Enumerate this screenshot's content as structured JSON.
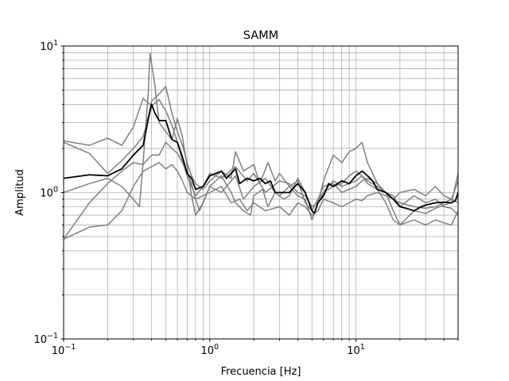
{
  "chart_data": {
    "type": "line",
    "title": "SAMM",
    "xlabel": "Frecuencia [Hz]",
    "ylabel": "Amplitud",
    "xscale": "log",
    "yscale": "log",
    "xlim": [
      0.1,
      50
    ],
    "ylim": [
      0.1,
      10
    ],
    "grid": true,
    "x_ticks": [
      {
        "value": 0.1,
        "base": "10",
        "exp": "−1"
      },
      {
        "value": 1,
        "base": "10",
        "exp": "0"
      },
      {
        "value": 10,
        "base": "10",
        "exp": "1"
      }
    ],
    "y_ticks": [
      {
        "value": 0.1,
        "base": "10",
        "exp": "−1"
      },
      {
        "value": 1,
        "base": "10",
        "exp": "0"
      },
      {
        "value": 10,
        "base": "10",
        "exp": "1"
      }
    ],
    "series": [
      {
        "color": "#808080",
        "width": 1.5,
        "points": [
          [
            0.1,
            2.25
          ],
          [
            0.15,
            2.1
          ],
          [
            0.2,
            2.35
          ],
          [
            0.25,
            2.1
          ],
          [
            0.3,
            2.8
          ],
          [
            0.35,
            4.4
          ],
          [
            0.4,
            3.9
          ],
          [
            0.45,
            4.3
          ],
          [
            0.5,
            3.6
          ],
          [
            0.55,
            2.9
          ],
          [
            0.6,
            2.2
          ],
          [
            0.65,
            1.65
          ],
          [
            0.7,
            1.3
          ],
          [
            0.75,
            1.1
          ],
          [
            0.8,
            0.95
          ],
          [
            0.9,
            1.1
          ],
          [
            1.0,
            1.35
          ],
          [
            1.2,
            1.25
          ],
          [
            1.5,
            1.5
          ],
          [
            1.8,
            1.2
          ],
          [
            2.0,
            1.35
          ],
          [
            2.4,
            1.0
          ],
          [
            3.0,
            1.2
          ],
          [
            3.5,
            1.15
          ],
          [
            4.0,
            1.0
          ],
          [
            4.5,
            0.95
          ],
          [
            5.0,
            0.8
          ],
          [
            5.5,
            0.85
          ],
          [
            6.0,
            1.0
          ],
          [
            7.0,
            1.1
          ],
          [
            8.0,
            1.15
          ],
          [
            9.0,
            1.3
          ],
          [
            10.0,
            1.4
          ],
          [
            11.0,
            1.3
          ],
          [
            12.0,
            1.2
          ],
          [
            14.0,
            1.1
          ],
          [
            16.0,
            1.0
          ],
          [
            18.0,
            0.9
          ],
          [
            20.0,
            0.85
          ],
          [
            25.0,
            0.8
          ],
          [
            30.0,
            0.78
          ],
          [
            35.0,
            0.8
          ],
          [
            40.0,
            0.85
          ],
          [
            45.0,
            0.9
          ],
          [
            50.0,
            1.2
          ]
        ]
      },
      {
        "color": "#808080",
        "width": 1.5,
        "points": [
          [
            0.1,
            2.2
          ],
          [
            0.15,
            1.85
          ],
          [
            0.2,
            1.35
          ],
          [
            0.25,
            1.65
          ],
          [
            0.3,
            2.0
          ],
          [
            0.35,
            2.4
          ],
          [
            0.38,
            3.3
          ],
          [
            0.4,
            4.2
          ],
          [
            0.45,
            4.7
          ],
          [
            0.5,
            5.3
          ],
          [
            0.55,
            3.5
          ],
          [
            0.6,
            2.6
          ],
          [
            0.65,
            2.1
          ],
          [
            0.7,
            1.6
          ],
          [
            0.75,
            1.3
          ],
          [
            0.8,
            1.15
          ],
          [
            0.9,
            1.05
          ],
          [
            1.0,
            1.2
          ],
          [
            1.2,
            1.4
          ],
          [
            1.4,
            1.25
          ],
          [
            1.5,
            1.9
          ],
          [
            1.7,
            1.4
          ],
          [
            2.0,
            1.55
          ],
          [
            2.2,
            1.15
          ],
          [
            2.5,
            1.6
          ],
          [
            2.8,
            1.2
          ],
          [
            3.0,
            1.35
          ],
          [
            3.5,
            1.1
          ],
          [
            4.0,
            0.95
          ],
          [
            4.5,
            0.9
          ],
          [
            5.0,
            0.65
          ],
          [
            5.5,
            0.85
          ],
          [
            6.0,
            1.2
          ],
          [
            7.0,
            1.8
          ],
          [
            8.0,
            1.6
          ],
          [
            9.0,
            1.9
          ],
          [
            10.0,
            2.0
          ],
          [
            11.0,
            2.2
          ],
          [
            12.0,
            1.6
          ],
          [
            14.0,
            1.15
          ],
          [
            16.0,
            1.0
          ],
          [
            18.0,
            0.75
          ],
          [
            20.0,
            0.6
          ],
          [
            25.0,
            0.65
          ],
          [
            30.0,
            0.6
          ],
          [
            35.0,
            0.65
          ],
          [
            40.0,
            0.62
          ],
          [
            45.0,
            0.6
          ],
          [
            50.0,
            0.75
          ]
        ]
      },
      {
        "color": "#808080",
        "width": 1.5,
        "points": [
          [
            0.1,
            1.0
          ],
          [
            0.15,
            1.15
          ],
          [
            0.2,
            1.25
          ],
          [
            0.25,
            1.1
          ],
          [
            0.3,
            0.9
          ],
          [
            0.33,
            0.8
          ],
          [
            0.35,
            1.6
          ],
          [
            0.38,
            5.0
          ],
          [
            0.39,
            8.9
          ],
          [
            0.42,
            5.5
          ],
          [
            0.45,
            3.0
          ],
          [
            0.5,
            2.6
          ],
          [
            0.55,
            2.3
          ],
          [
            0.6,
            3.2
          ],
          [
            0.65,
            2.4
          ],
          [
            0.7,
            1.5
          ],
          [
            0.75,
            0.95
          ],
          [
            0.8,
            0.7
          ],
          [
            0.9,
            0.85
          ],
          [
            1.0,
            1.1
          ],
          [
            1.2,
            1.3
          ],
          [
            1.4,
            1.0
          ],
          [
            1.5,
            0.85
          ],
          [
            1.7,
            0.75
          ],
          [
            1.9,
            0.7
          ],
          [
            2.0,
            0.95
          ],
          [
            2.3,
            1.05
          ],
          [
            2.5,
            0.8
          ],
          [
            2.8,
            1.0
          ],
          [
            3.0,
            0.95
          ],
          [
            3.5,
            1.1
          ],
          [
            4.0,
            1.2
          ],
          [
            4.5,
            0.85
          ],
          [
            5.0,
            0.75
          ],
          [
            5.5,
            0.9
          ],
          [
            6.0,
            1.0
          ],
          [
            7.0,
            1.2
          ],
          [
            8.0,
            1.1
          ],
          [
            9.0,
            1.15
          ],
          [
            10.0,
            1.2
          ],
          [
            11.0,
            1.3
          ],
          [
            12.0,
            1.15
          ],
          [
            14.0,
            1.05
          ],
          [
            16.0,
            0.85
          ],
          [
            18.0,
            0.65
          ],
          [
            20.0,
            0.6
          ],
          [
            25.0,
            0.75
          ],
          [
            30.0,
            0.72
          ],
          [
            35.0,
            0.78
          ],
          [
            40.0,
            0.82
          ],
          [
            45.0,
            0.85
          ],
          [
            50.0,
            1.35
          ]
        ]
      },
      {
        "color": "#808080",
        "width": 1.5,
        "points": [
          [
            0.1,
            0.48
          ],
          [
            0.15,
            0.58
          ],
          [
            0.2,
            0.6
          ],
          [
            0.25,
            0.75
          ],
          [
            0.3,
            1.1
          ],
          [
            0.35,
            1.4
          ],
          [
            0.4,
            1.5
          ],
          [
            0.45,
            1.6
          ],
          [
            0.5,
            1.45
          ],
          [
            0.55,
            1.55
          ],
          [
            0.6,
            1.4
          ],
          [
            0.65,
            1.2
          ],
          [
            0.7,
            1.0
          ],
          [
            0.8,
            0.9
          ],
          [
            0.9,
            0.95
          ],
          [
            1.0,
            1.0
          ],
          [
            1.2,
            1.1
          ],
          [
            1.4,
            0.85
          ],
          [
            1.6,
            0.9
          ],
          [
            1.8,
            0.75
          ],
          [
            2.0,
            0.85
          ],
          [
            2.4,
            0.75
          ],
          [
            3.0,
            0.8
          ],
          [
            3.5,
            0.7
          ],
          [
            4.0,
            0.85
          ],
          [
            4.5,
            0.8
          ],
          [
            5.0,
            0.7
          ],
          [
            5.5,
            0.75
          ],
          [
            6.0,
            0.9
          ],
          [
            7.0,
            0.85
          ],
          [
            8.0,
            0.8
          ],
          [
            9.0,
            0.85
          ],
          [
            10.0,
            0.9
          ],
          [
            11.0,
            0.88
          ],
          [
            12.0,
            0.95
          ],
          [
            14.0,
            1.0
          ],
          [
            16.0,
            0.95
          ],
          [
            18.0,
            0.9
          ],
          [
            20.0,
            1.0
          ],
          [
            25.0,
            1.05
          ],
          [
            30.0,
            0.95
          ],
          [
            35.0,
            1.1
          ],
          [
            40.0,
            0.95
          ],
          [
            45.0,
            0.9
          ],
          [
            50.0,
            0.85
          ]
        ]
      },
      {
        "color": "#808080",
        "width": 1.5,
        "points": [
          [
            0.1,
            0.48
          ],
          [
            0.15,
            0.85
          ],
          [
            0.2,
            1.15
          ],
          [
            0.25,
            1.4
          ],
          [
            0.3,
            1.6
          ],
          [
            0.35,
            1.55
          ],
          [
            0.4,
            1.8
          ],
          [
            0.45,
            1.8
          ],
          [
            0.5,
            2.2
          ],
          [
            0.55,
            2.0
          ],
          [
            0.6,
            1.85
          ],
          [
            0.65,
            1.6
          ],
          [
            0.7,
            1.35
          ],
          [
            0.75,
            1.15
          ],
          [
            0.8,
            0.9
          ],
          [
            0.85,
            0.75
          ],
          [
            0.9,
            0.85
          ],
          [
            1.0,
            1.1
          ],
          [
            1.2,
            1.0
          ],
          [
            1.4,
            1.2
          ],
          [
            1.5,
            1.3
          ],
          [
            1.7,
            0.9
          ],
          [
            2.0,
            1.1
          ],
          [
            2.4,
            1.25
          ],
          [
            2.8,
            1.0
          ],
          [
            3.2,
            0.9
          ],
          [
            3.5,
            0.95
          ],
          [
            4.0,
            1.25
          ],
          [
            4.5,
            1.0
          ],
          [
            5.0,
            0.75
          ],
          [
            5.5,
            0.9
          ],
          [
            6.0,
            1.1
          ],
          [
            7.0,
            1.15
          ],
          [
            8.0,
            1.0
          ],
          [
            9.0,
            1.05
          ],
          [
            10.0,
            1.1
          ],
          [
            11.0,
            1.2
          ],
          [
            12.0,
            1.25
          ],
          [
            14.0,
            1.15
          ],
          [
            16.0,
            1.0
          ],
          [
            18.0,
            0.95
          ],
          [
            20.0,
            0.8
          ],
          [
            25.0,
            0.95
          ],
          [
            30.0,
            0.85
          ],
          [
            35.0,
            0.9
          ],
          [
            40.0,
            0.8
          ],
          [
            45.0,
            0.78
          ],
          [
            50.0,
            0.7
          ]
        ]
      },
      {
        "color": "#000000",
        "width": 1.8,
        "points": [
          [
            0.1,
            1.25
          ],
          [
            0.15,
            1.32
          ],
          [
            0.2,
            1.3
          ],
          [
            0.25,
            1.45
          ],
          [
            0.3,
            1.8
          ],
          [
            0.35,
            2.1
          ],
          [
            0.38,
            3.2
          ],
          [
            0.4,
            4.0
          ],
          [
            0.42,
            3.5
          ],
          [
            0.45,
            3.1
          ],
          [
            0.5,
            3.1
          ],
          [
            0.55,
            2.3
          ],
          [
            0.6,
            2.2
          ],
          [
            0.65,
            1.75
          ],
          [
            0.7,
            1.35
          ],
          [
            0.75,
            1.25
          ],
          [
            0.8,
            1.05
          ],
          [
            0.9,
            1.1
          ],
          [
            1.0,
            1.3
          ],
          [
            1.2,
            1.4
          ],
          [
            1.3,
            1.25
          ],
          [
            1.5,
            1.45
          ],
          [
            1.6,
            1.15
          ],
          [
            1.8,
            1.25
          ],
          [
            2.0,
            1.2
          ],
          [
            2.2,
            1.25
          ],
          [
            2.4,
            1.15
          ],
          [
            2.6,
            1.2
          ],
          [
            2.8,
            1.0
          ],
          [
            3.0,
            1.0
          ],
          [
            3.5,
            1.0
          ],
          [
            4.0,
            1.15
          ],
          [
            4.5,
            1.0
          ],
          [
            5.0,
            0.75
          ],
          [
            5.2,
            0.72
          ],
          [
            5.5,
            0.85
          ],
          [
            6.0,
            0.95
          ],
          [
            6.5,
            1.15
          ],
          [
            7.0,
            1.1
          ],
          [
            8.0,
            1.2
          ],
          [
            9.0,
            1.15
          ],
          [
            10.0,
            1.3
          ],
          [
            11.0,
            1.4
          ],
          [
            12.0,
            1.3
          ],
          [
            13.0,
            1.2
          ],
          [
            14.0,
            1.05
          ],
          [
            16.0,
            1.0
          ],
          [
            18.0,
            0.9
          ],
          [
            20.0,
            0.8
          ],
          [
            22.0,
            0.78
          ],
          [
            25.0,
            0.75
          ],
          [
            28.0,
            0.8
          ],
          [
            30.0,
            0.82
          ],
          [
            35.0,
            0.85
          ],
          [
            40.0,
            0.86
          ],
          [
            45.0,
            0.85
          ],
          [
            48.0,
            0.88
          ],
          [
            50.0,
            1.0
          ]
        ]
      }
    ]
  }
}
